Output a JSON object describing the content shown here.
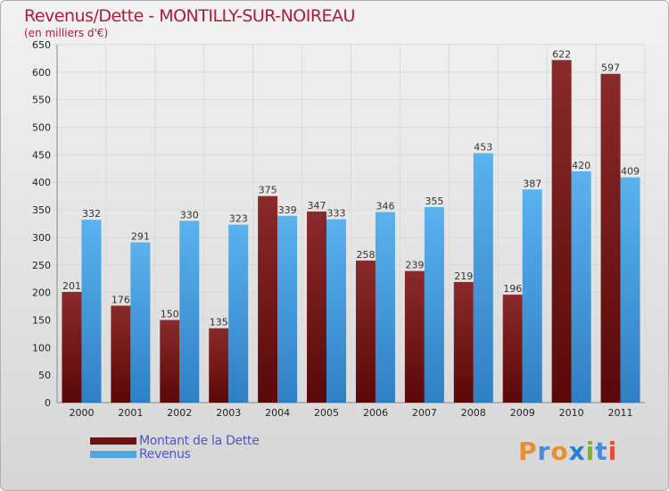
{
  "title": "Revenus/Dette - MONTILLY-SUR-NOIREAU",
  "subtitle": "(en milliers d'€)",
  "colors": {
    "dette": "#7a1d1d",
    "revenus": "#4da6e6",
    "title": "#b11a3c",
    "legend_text": "#4a57c9"
  },
  "legend": [
    {
      "label": "Montant de la Dette",
      "color": "#6b1212"
    },
    {
      "label": "Revenus",
      "color": "#4da6e6"
    }
  ],
  "logo": {
    "letters": [
      "P",
      "r",
      "o",
      "x",
      "i",
      "t",
      "i"
    ],
    "colors": [
      "#e8902e",
      "#4a8bd6",
      "#e8902e",
      "#2a7fd0",
      "#7ab829",
      "#4a8bd6",
      "#e84e2e"
    ]
  },
  "chart_data": {
    "type": "bar",
    "title": "Revenus/Dette - MONTILLY-SUR-NOIREAU",
    "ylabel": "(en milliers d'€)",
    "xlabel": "",
    "categories": [
      "2000",
      "2001",
      "2002",
      "2003",
      "2004",
      "2005",
      "2006",
      "2007",
      "2008",
      "2009",
      "2010",
      "2011"
    ],
    "series": [
      {
        "name": "Montant de la Dette",
        "values": [
          201,
          176,
          150,
          135,
          375,
          347,
          258,
          239,
          219,
          196,
          622,
          597
        ]
      },
      {
        "name": "Revenus",
        "values": [
          332,
          291,
          330,
          323,
          339,
          333,
          346,
          355,
          453,
          387,
          420,
          409
        ]
      }
    ],
    "ylim": [
      0,
      650
    ],
    "yticks": [
      0,
      50,
      100,
      150,
      200,
      250,
      300,
      350,
      400,
      450,
      500,
      550,
      600,
      650
    ],
    "grid": true,
    "legend_position": "bottom-left"
  }
}
